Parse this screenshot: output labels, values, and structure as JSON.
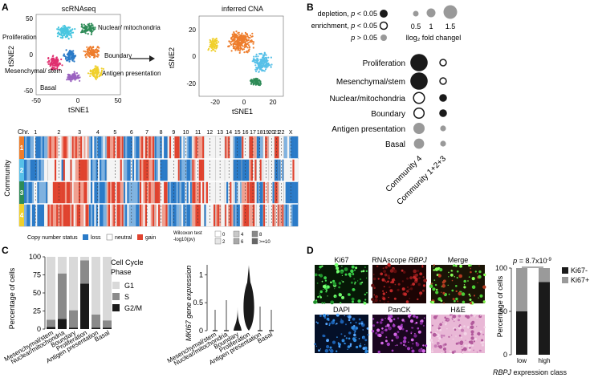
{
  "panelA": {
    "label": "A",
    "tsne_left": {
      "title": "scRNAseq",
      "xlabel": "tSNE1",
      "ylabel": "tSNE2",
      "xticks": [
        "-50",
        "0",
        "50"
      ],
      "yticks": [
        "50",
        "0",
        "-50"
      ],
      "labels": [
        "Nuclear/\nmitochondria",
        "Proliferation",
        "Boundary",
        "Antigen\npresentation",
        "Mesenchymal/\nstem",
        "Basal"
      ]
    },
    "tsne_right": {
      "title": "inferred CNA",
      "xlabel": "tSNE1",
      "ylabel": "tSNE2",
      "xticks": [
        "-20",
        "0",
        "20"
      ],
      "yticks": [
        "20",
        "0",
        "-20"
      ]
    },
    "heatmap": {
      "chr_label": "Chr.",
      "chromosomes": [
        "1",
        "2",
        "3",
        "4",
        "5",
        "6",
        "7",
        "8",
        "9",
        "10",
        "11",
        "12",
        "13",
        "14",
        "15",
        "16",
        "17",
        "18",
        "19",
        "20",
        "21",
        "22",
        "X"
      ],
      "ylabel": "Community",
      "communities": [
        "1",
        "2",
        "3",
        "4"
      ],
      "community_colors": [
        "#ee7d2c",
        "#57c0e8",
        "#2e8b57",
        "#f0d02c"
      ],
      "legend_title": "Copy number status",
      "legend_items": [
        {
          "label": "loss",
          "color": "#2b7bc8"
        },
        {
          "label": "neutral",
          "color": "#ffffff"
        },
        {
          "label": "gain",
          "color": "#e0432f"
        }
      ],
      "wilcoxon_title": "Wilcoxon test\n-log10(pv)",
      "wilcoxon_levels": [
        "0",
        "2",
        "4",
        "6",
        "8",
        ">=10"
      ]
    }
  },
  "panelB": {
    "label": "B",
    "legend": {
      "depletion": "depletion, p < 0.05",
      "enrichment": "enrichment, p < 0.05",
      "ns": "p > 0.05",
      "sizes": [
        "0.5",
        "1",
        "1.5"
      ],
      "size_title": "llog₂ fold changel"
    },
    "rows": [
      "Proliferation",
      "Mesenchymal/stem",
      "Nuclear/mitochondria",
      "Boundary",
      "Antigen presentation",
      "Basal"
    ],
    "columns": [
      "Community 4",
      "Community 1+2+3"
    ]
  },
  "panelC": {
    "label": "C",
    "bar": {
      "ylabel": "Percentage of cells",
      "yticks": [
        "0",
        "25",
        "50",
        "75",
        "100"
      ],
      "categories": [
        "Mesenchymal/stem",
        "Nuclear/mitochondria",
        "Boundary",
        "Proliferation",
        "Antigen presentation",
        "Basal"
      ],
      "legend_title": "Cell Cycle Phase",
      "phases": [
        {
          "name": "G1",
          "color": "#d9d9d9"
        },
        {
          "name": "S",
          "color": "#8a8a8a"
        },
        {
          "name": "G2/M",
          "color": "#1a1a1a"
        }
      ]
    },
    "violin": {
      "ylabel": "MKI67 gene expression",
      "yticks": [
        "0",
        "0.5",
        "1"
      ],
      "categories": [
        "Mesenchymal/stem",
        "Nuclear/mitochondria",
        "Boundary",
        "Proliferation",
        "Antigen presentation",
        "Basal"
      ]
    }
  },
  "panelD": {
    "label": "D",
    "images": [
      "Ki67",
      "RNAscope RBPJ",
      "Merge",
      "DAPI",
      "PanCK",
      "H&E"
    ],
    "bar": {
      "pvalue": "p = 8.7x10⁻⁹",
      "ylabel": "Percentage of cells",
      "yticks": [
        "0",
        "50",
        "100"
      ],
      "categories": [
        "low",
        "high"
      ],
      "xlabel": "RBPJ expression class",
      "legend": [
        {
          "name": "Ki67-",
          "color": "#1a1a1a"
        },
        {
          "name": "Ki67+",
          "color": "#9a9a9a"
        }
      ]
    }
  },
  "chart_data": [
    {
      "type": "bar",
      "title": "",
      "ylabel": "Percentage of cells",
      "ylim": [
        0,
        100
      ],
      "categories": [
        "Mesenchymal/stem",
        "Nuclear/mitochondria",
        "Boundary",
        "Proliferation",
        "Antigen presentation",
        "Basal"
      ],
      "series": [
        {
          "name": "G2/M",
          "values": [
            3,
            14,
            2,
            63,
            2,
            2
          ]
        },
        {
          "name": "S",
          "values": [
            10,
            63,
            24,
            32,
            18,
            10
          ]
        },
        {
          "name": "G1",
          "values": [
            87,
            23,
            74,
            5,
            80,
            88
          ]
        }
      ]
    },
    {
      "type": "bar",
      "title": "",
      "ylabel": "Percentage of cells",
      "xlabel": "RBPJ expression class",
      "ylim": [
        0,
        100
      ],
      "categories": [
        "low",
        "high"
      ],
      "series": [
        {
          "name": "Ki67-",
          "values": [
            50,
            84
          ]
        },
        {
          "name": "Ki67+",
          "values": [
            50,
            16
          ]
        }
      ]
    },
    {
      "type": "scatter",
      "title": "",
      "xlabel": "",
      "ylabel": "",
      "rows": [
        "Proliferation",
        "Mesenchymal/stem",
        "Nuclear/mitochondria",
        "Boundary",
        "Antigen presentation",
        "Basal"
      ],
      "columns": [
        "Community 4",
        "Community 1+2+3"
      ],
      "fold_change": [
        [
          1.6,
          0.5
        ],
        [
          1.6,
          0.5
        ],
        [
          1.0,
          0.5
        ],
        [
          0.9,
          0.5
        ],
        [
          0.9,
          0.3
        ],
        [
          0.8,
          0.3
        ]
      ],
      "status": [
        [
          "depletion",
          "enrichment"
        ],
        [
          "depletion",
          "enrichment"
        ],
        [
          "enrichment",
          "depletion"
        ],
        [
          "enrichment",
          "depletion"
        ],
        [
          "ns",
          "ns"
        ],
        [
          "ns",
          "ns"
        ]
      ]
    }
  ]
}
